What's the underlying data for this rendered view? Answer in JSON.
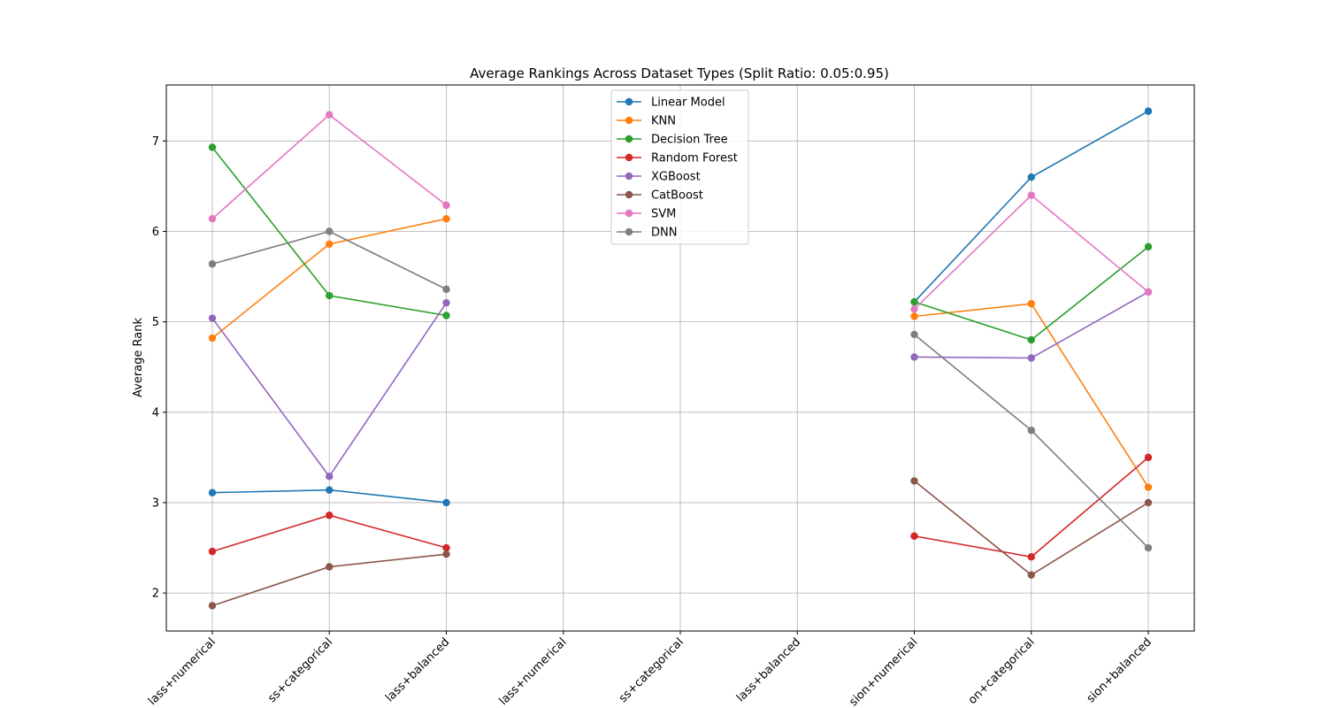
{
  "chart_data": {
    "type": "line",
    "title": "Average Rankings Across Dataset Types (Split Ratio: 0.05:0.95)",
    "xlabel": "",
    "ylabel": "Average Rank",
    "categories": [
      "binclass+numerical",
      "binclass+categorical",
      "binclass+balanced",
      "multiclass+numerical",
      "multiclass+categorical",
      "multiclass+balanced",
      "regression+numerical",
      "regression+categorical",
      "regression+balanced"
    ],
    "category_labels_visible": [
      "lass+numerical",
      "ss+categorical",
      "lass+balanced",
      "lass+numerical",
      "ss+categorical",
      "lass+balanced",
      "sion+numerical",
      "on+categorical",
      "sion+balanced"
    ],
    "ylim": [
      1.58,
      7.62
    ],
    "yticks": [
      2,
      3,
      4,
      5,
      6,
      7
    ],
    "grid": true,
    "legend_position": "top-center",
    "series": [
      {
        "name": "Linear Model",
        "color": "#1f77b4",
        "values": [
          3.11,
          3.14,
          3.0,
          null,
          null,
          null,
          5.22,
          6.6,
          7.33
        ]
      },
      {
        "name": "KNN",
        "color": "#ff7f0e",
        "values": [
          4.82,
          5.86,
          6.14,
          null,
          null,
          null,
          5.06,
          5.2,
          3.17
        ]
      },
      {
        "name": "Decision Tree",
        "color": "#2ca02c",
        "values": [
          6.93,
          5.29,
          5.07,
          null,
          null,
          null,
          5.22,
          4.8,
          5.83
        ]
      },
      {
        "name": "Random Forest",
        "color": "#d62728",
        "values": [
          2.46,
          2.86,
          2.5,
          null,
          null,
          null,
          2.63,
          2.4,
          3.5
        ]
      },
      {
        "name": "XGBoost",
        "color": "#9467bd",
        "values": [
          5.04,
          3.29,
          5.21,
          null,
          null,
          null,
          4.61,
          4.6,
          5.33
        ]
      },
      {
        "name": "CatBoost",
        "color": "#8c564b",
        "values": [
          1.86,
          2.29,
          2.43,
          null,
          null,
          null,
          3.24,
          2.2,
          3.0
        ]
      },
      {
        "name": "SVM",
        "color": "#e377c2",
        "values": [
          6.14,
          7.29,
          6.29,
          null,
          null,
          null,
          5.14,
          6.4,
          5.33
        ]
      },
      {
        "name": "DNN",
        "color": "#7f7f7f",
        "values": [
          5.64,
          6.0,
          5.36,
          null,
          null,
          null,
          4.86,
          3.8,
          2.5
        ]
      }
    ]
  }
}
